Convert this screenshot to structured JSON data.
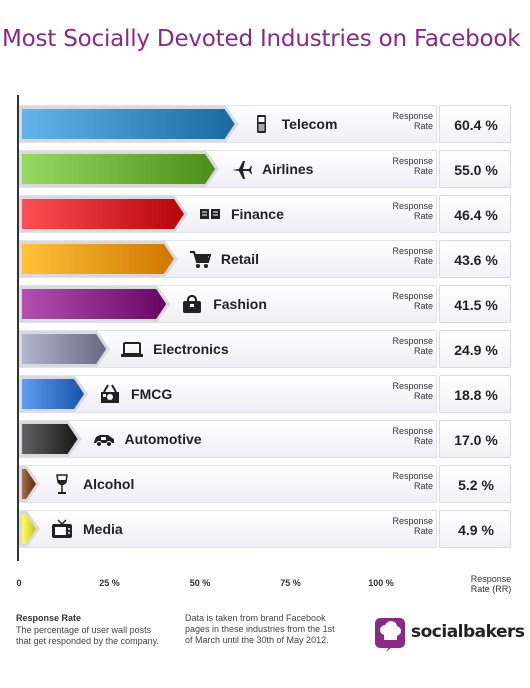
{
  "title": "Most Socially Devoted Industries on Facebook",
  "chart_data": {
    "type": "bar",
    "orientation": "horizontal",
    "title": "Most Socially Devoted Industries on Facebook",
    "xlabel": "Response Rate (RR)",
    "xlim": [
      0,
      100
    ],
    "x_ticks": [
      "0",
      "25 %",
      "50 %",
      "75 %",
      "100 %"
    ],
    "x_tick_values": [
      0,
      25,
      50,
      75,
      100
    ],
    "categories": [
      "Telecom",
      "Airlines",
      "Finance",
      "Retail",
      "Fashion",
      "Electronics",
      "FMCG",
      "Automotive",
      "Alcohol",
      "Media"
    ],
    "values": [
      60.4,
      55.0,
      46.4,
      43.6,
      41.5,
      24.9,
      18.8,
      17.0,
      5.2,
      4.9
    ],
    "value_labels": [
      "60.4 %",
      "55.0 %",
      "46.4 %",
      "43.6 %",
      "41.5 %",
      "24.9 %",
      "18.8 %",
      "17.0 %",
      "5.2 %",
      "4.9 %"
    ],
    "colors": [
      "#3a8dc2",
      "#6fb13a",
      "#d8262c",
      "#f39a10",
      "#8a2a86",
      "#8c8ca6",
      "#3a75cc",
      "#3a3a3a",
      "#7a4a2a",
      "#e2e83a"
    ],
    "icons": [
      "mobile-phone-icon",
      "airplane-icon",
      "banknotes-icon",
      "shopping-cart-icon",
      "handbag-icon",
      "laptop-icon",
      "shopping-basket-icon",
      "car-icon",
      "wine-glass-icon",
      "television-icon"
    ],
    "rr_label": "Response Rate"
  },
  "axis": {
    "rr_label_line1": "Response",
    "rr_label_line2": "Rate (RR)"
  },
  "footer": {
    "definition_title": "Response Rate",
    "definition_text": "The percentage of user wall posts that get responded by the company.",
    "source_text": "Data is taken from brand Facebook pages in these industries from the 1st of March until the 30th of May 2012.",
    "brand": "socialbakers"
  }
}
